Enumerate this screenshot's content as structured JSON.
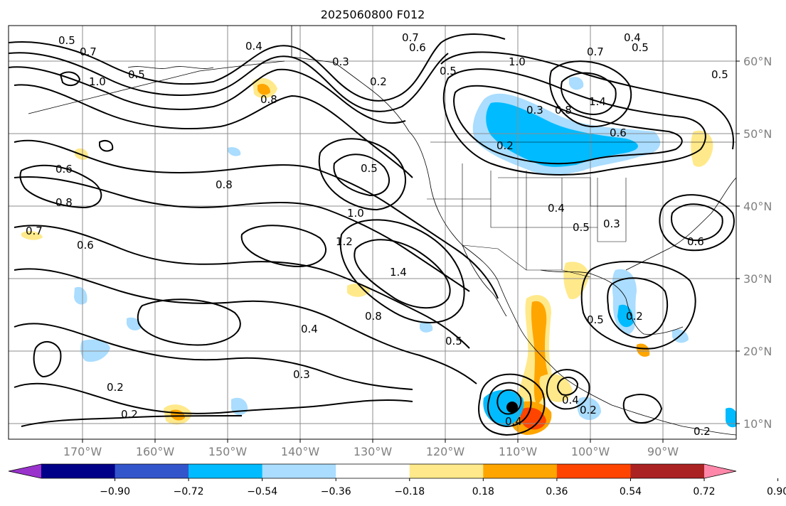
{
  "title": "2025060800 F012",
  "lat_labels": [
    "60°N",
    "50°N",
    "40°N",
    "30°N",
    "20°N",
    "10°N"
  ],
  "lon_labels": [
    "170°W",
    "160°W",
    "150°W",
    "140°W",
    "130°W",
    "120°W",
    "110°W",
    "100°W",
    "90°W"
  ],
  "colorbar": {
    "labels": [
      "−0.90",
      "−0.72",
      "−0.54",
      "−0.36",
      "−0.18",
      "0.18",
      "0.36",
      "0.54",
      "0.72",
      "0.90"
    ],
    "colors": [
      "#9933cc",
      "#000088",
      "#3355cc",
      "#00bbff",
      "#aaddff",
      "#ffffff",
      "#ffe98a",
      "#ffa500",
      "#ff4400",
      "#aa2222",
      "#ff88aa"
    ]
  },
  "contour_labels": [
    "0.5",
    "0.7",
    "1.0",
    "0.5",
    "0.4",
    "0.8",
    "0.3",
    "0.2",
    "0.7",
    "0.6",
    "0.5",
    "1.0",
    "0.7",
    "0.4",
    "0.5",
    "0.5",
    "1.4",
    "0.3",
    "0.8",
    "0.2",
    "0.6",
    "0.5",
    "0.6",
    "0.8",
    "0.7",
    "0.6",
    "0.8",
    "1.0",
    "1.2",
    "1.4",
    "0.8",
    "0.4",
    "0.5",
    "0.3",
    "0.2",
    "0.2",
    "0.4",
    "0.5",
    "0.3",
    "0.6",
    "0.5",
    "0.2",
    "0.4",
    "0.2",
    "0.2",
    "0.4"
  ]
}
